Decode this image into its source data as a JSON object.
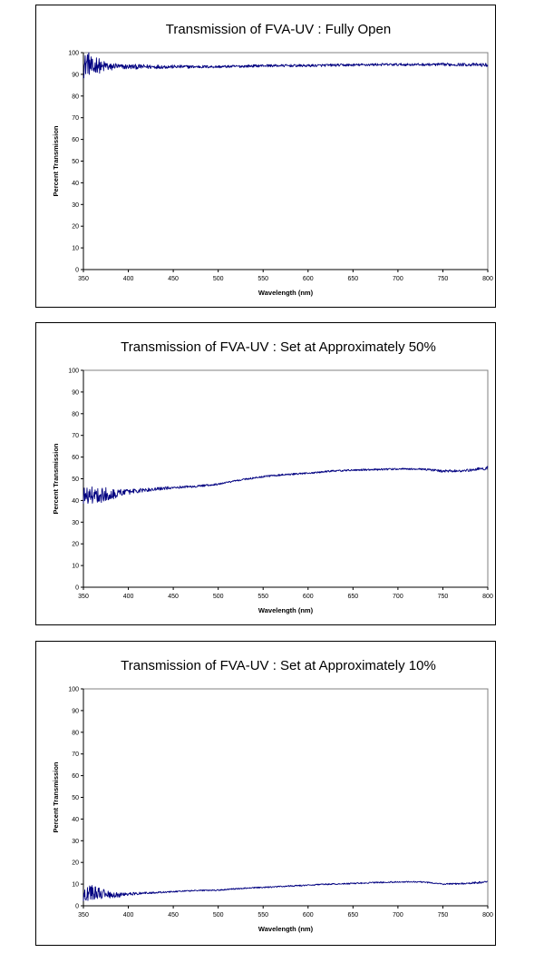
{
  "chart_data": [
    {
      "type": "line",
      "title": "Transmission of FVA-UV : Fully Open",
      "xlabel": "Wavelength (nm)",
      "ylabel": "Percent Transmission",
      "xlim": [
        350,
        800
      ],
      "ylim": [
        0,
        100
      ],
      "xticks": [
        350,
        400,
        450,
        500,
        550,
        600,
        650,
        700,
        750,
        800
      ],
      "yticks": [
        0,
        10,
        20,
        30,
        40,
        50,
        60,
        70,
        80,
        90,
        100
      ],
      "grid": false,
      "legend": "none",
      "line_color": "#000080",
      "series": [
        {
          "x": [
            350,
            355,
            360,
            365,
            370,
            375,
            380,
            385,
            390,
            400,
            425,
            450,
            475,
            500,
            525,
            550,
            575,
            600,
            625,
            650,
            675,
            700,
            725,
            750,
            775,
            800
          ],
          "y": [
            93,
            96,
            92,
            95,
            93,
            94,
            93,
            94,
            93.5,
            93.5,
            93.5,
            93.5,
            93.5,
            93.5,
            93.7,
            94,
            94,
            94,
            94.2,
            94.3,
            94.5,
            94.5,
            94.5,
            94.5,
            94.5,
            94.3
          ],
          "noise": [
            5,
            6,
            5,
            4,
            3,
            2.5,
            2,
            1.5,
            1.2,
            1.2,
            1,
            0.8,
            0.7,
            0.6,
            0.6,
            0.6,
            0.6,
            0.6,
            0.6,
            0.6,
            0.6,
            0.6,
            0.6,
            0.7,
            0.7,
            0.8
          ]
        }
      ]
    },
    {
      "type": "line",
      "title": "Transmission of FVA-UV : Set at Approximately 50%",
      "xlabel": "Wavelength (nm)",
      "ylabel": "Percent Transmission",
      "xlim": [
        350,
        800
      ],
      "ylim": [
        0,
        100
      ],
      "xticks": [
        350,
        400,
        450,
        500,
        550,
        600,
        650,
        700,
        750,
        800
      ],
      "yticks": [
        0,
        10,
        20,
        30,
        40,
        50,
        60,
        70,
        80,
        90,
        100
      ],
      "grid": false,
      "legend": "none",
      "line_color": "#000080",
      "series": [
        {
          "x": [
            350,
            360,
            370,
            380,
            390,
            400,
            425,
            450,
            475,
            500,
            525,
            550,
            575,
            600,
            625,
            650,
            675,
            700,
            725,
            750,
            775,
            800
          ],
          "y": [
            42,
            42.5,
            42.5,
            43,
            43.5,
            44,
            45,
            46,
            46.5,
            47.5,
            49.5,
            51,
            52,
            52.5,
            53.5,
            54,
            54.2,
            54.5,
            54.5,
            53.5,
            53.8,
            55
          ],
          "noise": [
            4,
            4,
            3.5,
            3,
            2,
            1.3,
            0.8,
            0.6,
            0.5,
            0.4,
            0.4,
            0.4,
            0.4,
            0.4,
            0.4,
            0.4,
            0.4,
            0.4,
            0.4,
            0.6,
            0.6,
            0.8
          ]
        }
      ]
    },
    {
      "type": "line",
      "title": "Transmission of FVA-UV : Set at Approximately 10%",
      "xlabel": "Wavelength (nm)",
      "ylabel": "Percent Transmission",
      "xlim": [
        350,
        800
      ],
      "ylim": [
        0,
        100
      ],
      "xticks": [
        350,
        400,
        450,
        500,
        550,
        600,
        650,
        700,
        750,
        800
      ],
      "yticks": [
        0,
        10,
        20,
        30,
        40,
        50,
        60,
        70,
        80,
        90,
        100
      ],
      "grid": false,
      "legend": "none",
      "line_color": "#000080",
      "series": [
        {
          "x": [
            350,
            360,
            370,
            380,
            390,
            400,
            425,
            450,
            475,
            500,
            525,
            550,
            575,
            600,
            625,
            650,
            675,
            700,
            725,
            740,
            750,
            775,
            800
          ],
          "y": [
            5,
            6,
            5.5,
            5,
            5,
            5.5,
            6,
            6.5,
            7,
            7.2,
            8,
            8.5,
            9,
            9.5,
            10,
            10.3,
            10.7,
            11,
            11,
            10.5,
            10,
            10.3,
            11
          ],
          "noise": [
            3.5,
            3.5,
            2.5,
            1.5,
            1,
            0.7,
            0.4,
            0.3,
            0.3,
            0.3,
            0.3,
            0.3,
            0.3,
            0.3,
            0.3,
            0.3,
            0.3,
            0.3,
            0.3,
            0.3,
            0.3,
            0.4,
            0.5
          ]
        }
      ]
    }
  ]
}
